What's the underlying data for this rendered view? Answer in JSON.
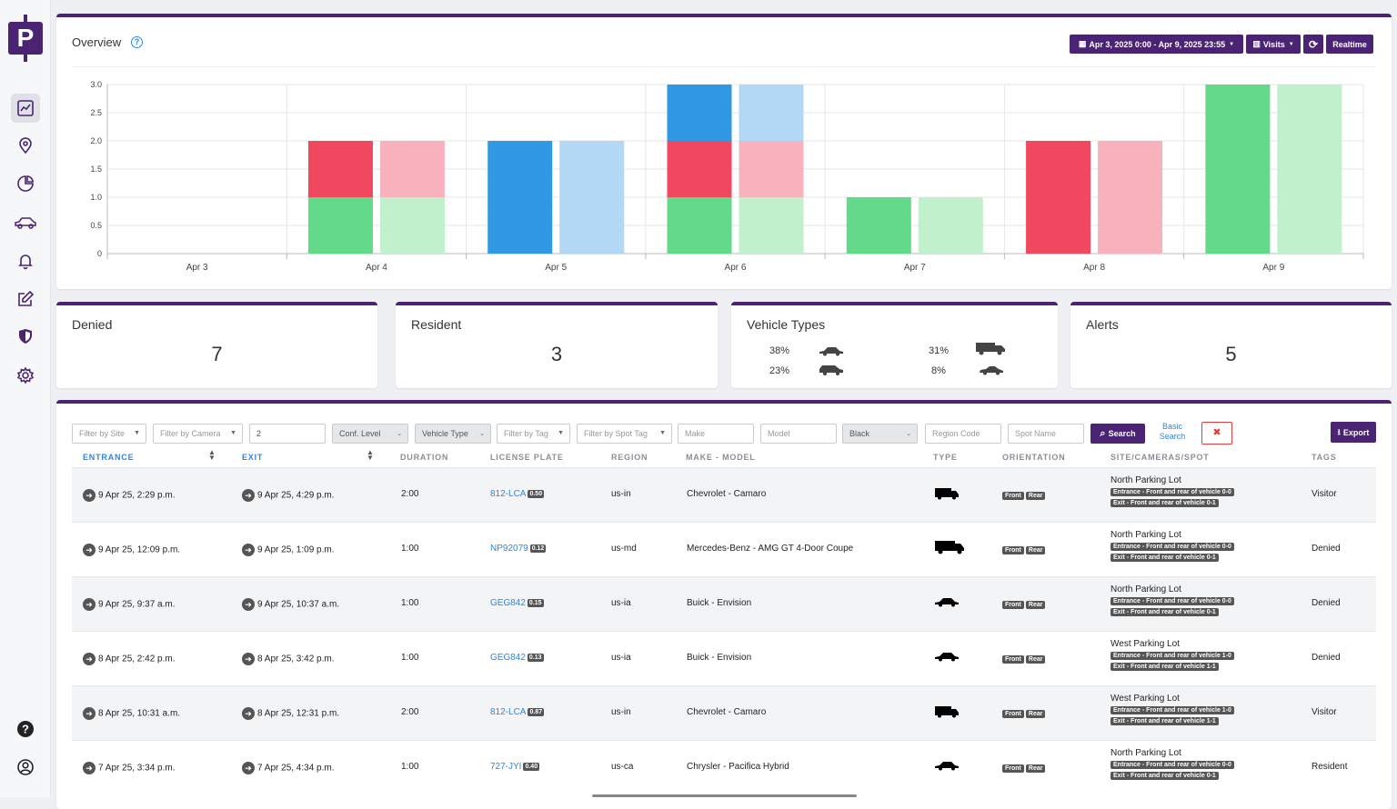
{
  "brand": {
    "logo_letter": "P",
    "color": "#4a2472"
  },
  "sidebar": {
    "items": [
      {
        "name": "dashboard",
        "icon": "chart-line-icon",
        "active": true
      },
      {
        "name": "locations",
        "icon": "map-pin-icon"
      },
      {
        "name": "reports",
        "icon": "pie-chart-icon"
      },
      {
        "name": "vehicles",
        "icon": "car-icon"
      },
      {
        "name": "alerts",
        "icon": "bell-icon"
      },
      {
        "name": "edit",
        "icon": "edit-icon"
      },
      {
        "name": "security",
        "icon": "shield-icon"
      },
      {
        "name": "settings",
        "icon": "gear-icon"
      }
    ],
    "bottom": [
      {
        "name": "help",
        "icon": "help-icon"
      },
      {
        "name": "account",
        "icon": "user-circle-icon"
      }
    ]
  },
  "overview": {
    "title": "Overview",
    "date_range": "Apr 3, 2025 0:00 - Apr 9, 2025 23:55",
    "metric": "Visits",
    "realtime_label": "Realtime"
  },
  "chart_data": {
    "type": "bar",
    "stacked": true,
    "categories": [
      "Apr 3",
      "Apr 4",
      "Apr 5",
      "Apr 6",
      "Apr 7",
      "Apr 8",
      "Apr 9"
    ],
    "ylim": [
      0,
      3
    ],
    "yticks": [
      "3.0",
      "2.5",
      "2.0",
      "1.5",
      "1.0",
      "0.5",
      "0"
    ],
    "grid": true,
    "series": [
      {
        "stack": "entry",
        "values": [
          0,
          1,
          0,
          1,
          1,
          0,
          3
        ],
        "color": "#63d98a"
      },
      {
        "stack": "entry",
        "values": [
          0,
          1,
          0,
          1,
          0,
          2,
          0
        ],
        "color": "#f0485e"
      },
      {
        "stack": "entry",
        "values": [
          0,
          0,
          2,
          1,
          0,
          0,
          0
        ],
        "color": "#3199e3"
      },
      {
        "stack": "exit",
        "values": [
          0,
          1,
          0,
          1,
          1,
          0,
          3
        ],
        "color": "#c0f0cc"
      },
      {
        "stack": "exit",
        "values": [
          0,
          1,
          0,
          1,
          0,
          2,
          0
        ],
        "color": "#f7b2bd"
      },
      {
        "stack": "exit",
        "values": [
          0,
          0,
          2,
          1,
          0,
          0,
          0
        ],
        "color": "#b3d8f6"
      }
    ]
  },
  "stats": {
    "denied": {
      "title": "Denied",
      "value": "7"
    },
    "resident": {
      "title": "Resident",
      "value": "3"
    },
    "vehicle_types": {
      "title": "Vehicle Types",
      "sedan": "38%",
      "truck": "31%",
      "suv": "23%",
      "coupe": "8%"
    },
    "alerts": {
      "title": "Alerts",
      "value": "5"
    }
  },
  "filters": {
    "site": "Filter by Site",
    "camera": "Filter by Camera",
    "number": "2",
    "conf_level": "Conf. Level",
    "vehicle_type": "Vehicle Type",
    "tag": "Filter by Tag",
    "spot_tag": "Filter by Spot Tag",
    "make": "Make",
    "model": "Model",
    "color": "Black",
    "region_code": "Region Code",
    "spot_name": "Spot Name",
    "search": "Search",
    "basic_search_1": "Basic",
    "basic_search_2": "Search",
    "clear": "✖",
    "export": "Export"
  },
  "table": {
    "headers": {
      "entrance": "ENTRANCE",
      "exit": "EXIT",
      "duration": "DURATION",
      "plate": "LICENSE PLATE",
      "region": "REGION",
      "make_model": "MAKE - MODEL",
      "type": "TYPE",
      "orientation": "ORIENTATION",
      "site": "SITE/CAMERAS/SPOT",
      "tags": "TAGS"
    },
    "front": "Front",
    "rear": "Rear",
    "rows": [
      {
        "entrance": "9 Apr 25, 2:29 p.m.",
        "exit": "9 Apr 25, 4:29 p.m.",
        "duration": "2:00",
        "plate": "812-LCA",
        "conf": "0.50",
        "region": "us-in",
        "make_model": "Chevrolet - Camaro",
        "vtype": "truck",
        "site": "North Parking Lot",
        "cam_entrance": "Entrance - Front and rear of vehicle 0-0",
        "cam_exit": "Exit - Front and rear of vehicle 0-1",
        "tag": "Visitor"
      },
      {
        "entrance": "9 Apr 25, 12:09 p.m.",
        "exit": "9 Apr 25, 1:09 p.m.",
        "duration": "1:00",
        "plate": "NP92079",
        "conf": "0.12",
        "region": "us-md",
        "make_model": "Mercedes-Benz - AMG GT 4-Door Coupe",
        "vtype": "big-truck",
        "site": "North Parking Lot",
        "cam_entrance": "Entrance - Front and rear of vehicle 0-0",
        "cam_exit": "Exit - Front and rear of vehicle 0-1",
        "tag": "Denied"
      },
      {
        "entrance": "9 Apr 25, 9:37 a.m.",
        "exit": "9 Apr 25, 10:37 a.m.",
        "duration": "1:00",
        "plate": "GEG842",
        "conf": "0.15",
        "region": "us-ia",
        "make_model": "Buick - Envision",
        "vtype": "car",
        "site": "North Parking Lot",
        "cam_entrance": "Entrance - Front and rear of vehicle 0-0",
        "cam_exit": "Exit - Front and rear of vehicle 0-1",
        "tag": "Denied"
      },
      {
        "entrance": "8 Apr 25, 2:42 p.m.",
        "exit": "8 Apr 25, 3:42 p.m.",
        "duration": "1:00",
        "plate": "GEG842",
        "conf": "0.13",
        "region": "us-ia",
        "make_model": "Buick - Envision",
        "vtype": "car",
        "site": "West Parking Lot",
        "cam_entrance": "Entrance - Front and rear of vehicle 1-0",
        "cam_exit": "Exit - Front and rear of vehicle 1-1",
        "tag": "Denied"
      },
      {
        "entrance": "8 Apr 25, 10:31 a.m.",
        "exit": "8 Apr 25, 12:31 p.m.",
        "duration": "2:00",
        "plate": "812-LCA",
        "conf": "0.87",
        "region": "us-in",
        "make_model": "Chevrolet - Camaro",
        "vtype": "truck",
        "site": "West Parking Lot",
        "cam_entrance": "Entrance - Front and rear of vehicle 1-0",
        "cam_exit": "Exit - Front and rear of vehicle 1-1",
        "tag": "Visitor"
      },
      {
        "entrance": "7 Apr 25, 3:34 p.m.",
        "exit": "7 Apr 25, 4:34 p.m.",
        "duration": "1:00",
        "plate": "727-JYI",
        "conf": "0.40",
        "region": "us-ca",
        "make_model": "Chrysler - Pacifica Hybrid",
        "vtype": "car",
        "site": "North Parking Lot",
        "cam_entrance": "Entrance - Front and rear of vehicle 0-0",
        "cam_exit": "Exit - Front and rear of vehicle 0-1",
        "tag": "Resident"
      }
    ]
  }
}
